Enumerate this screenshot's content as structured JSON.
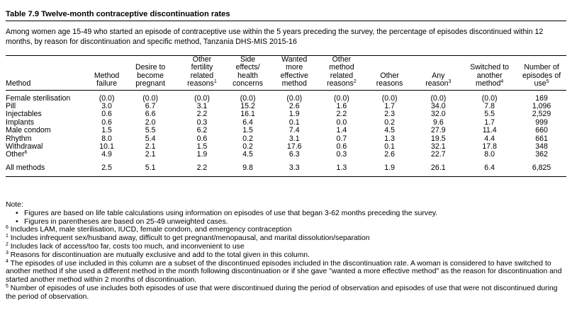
{
  "title": "Table 7.9  Twelve-month contraceptive discontinuation rates",
  "description": "Among women age 15-49 who started an episode of contraceptive use within the 5 years preceding the survey, the percentage of episodes discontinued within 12 months, by reason for discontinuation and specific method, Tanzania DHS-MIS 2015-16",
  "headers": {
    "method": "Method",
    "method_failure": [
      "Method",
      "failure"
    ],
    "desire": [
      "Desire to",
      "become",
      "pregnant"
    ],
    "other_fertility": [
      "Other",
      "fertility",
      "related",
      "reasons"
    ],
    "other_fertility_sup": "1",
    "side_effects": [
      "Side",
      "effects/",
      "health",
      "concerns"
    ],
    "wanted": [
      "Wanted",
      "more",
      "effective",
      "method"
    ],
    "other_method": [
      "Other",
      "method",
      "related",
      "reasons"
    ],
    "other_method_sup": "2",
    "other_reasons": [
      "Other",
      "reasons"
    ],
    "any_reason": [
      "Any",
      "reason"
    ],
    "any_reason_sup": "3",
    "switched": [
      "Switched to",
      "another",
      "method"
    ],
    "switched_sup": "4",
    "episodes": [
      "Number of",
      "episodes of",
      "use"
    ],
    "episodes_sup": "5"
  },
  "rows": [
    {
      "method": "Female sterilisation",
      "sup": "",
      "values": [
        "(0.0)",
        "(0.0)",
        "(0.0)",
        "(0.0)",
        "(0.0)",
        "(0.0)",
        "(0.0)",
        "(0.0)",
        "(0.0)",
        "169"
      ]
    },
    {
      "method": "Pill",
      "sup": "",
      "values": [
        "3.0",
        "6.7",
        "3.1",
        "15.2",
        "2.6",
        "1.6",
        "1.7",
        "34.0",
        "7.8",
        "1,096"
      ]
    },
    {
      "method": "Injectables",
      "sup": "",
      "values": [
        "0.6",
        "6.6",
        "2.2",
        "16.1",
        "1.9",
        "2.2",
        "2.3",
        "32.0",
        "5.5",
        "2,529"
      ]
    },
    {
      "method": "Implants",
      "sup": "",
      "values": [
        "0.6",
        "2.0",
        "0.3",
        "6.4",
        "0.1",
        "0.0",
        "0.2",
        "9.6",
        "1.7",
        "999"
      ]
    },
    {
      "method": "Male condom",
      "sup": "",
      "values": [
        "1.5",
        "5.5",
        "6.2",
        "1.5",
        "7.4",
        "1.4",
        "4.5",
        "27.9",
        "11.4",
        "660"
      ]
    },
    {
      "method": "Rhythm",
      "sup": "",
      "values": [
        "8.0",
        "5.4",
        "0.6",
        "0.2",
        "3.1",
        "0.7",
        "1.3",
        "19.5",
        "4.4",
        "661"
      ]
    },
    {
      "method": "Withdrawal",
      "sup": "",
      "values": [
        "10.1",
        "2.1",
        "1.5",
        "0.2",
        "17.6",
        "0.6",
        "0.1",
        "32.1",
        "17.8",
        "348"
      ]
    },
    {
      "method": "Other",
      "sup": "6",
      "values": [
        "4.9",
        "2.1",
        "1.9",
        "4.5",
        "6.3",
        "0.3",
        "2.6",
        "22.7",
        "8.0",
        "362"
      ]
    }
  ],
  "all_methods": {
    "method": "All methods",
    "values": [
      "2.5",
      "5.1",
      "2.2",
      "9.8",
      "3.3",
      "1.3",
      "1.9",
      "26.1",
      "6.4",
      "6,825"
    ]
  },
  "notes": {
    "heading": "Note:",
    "bullets": [
      "Figures are based on life table calculations using information on episodes of use that began 3-62 months preceding the survey.",
      "Figures in parentheses are based on 25-49 unweighted cases."
    ],
    "footnotes": [
      {
        "mark": "6",
        "text": " Includes LAM, male sterilisation, IUCD, female condom, and emergency contraception"
      },
      {
        "mark": "1",
        "text": " Includes infrequent sex/husband away, difficult to get pregnant/menopausal, and marital dissolution/separation"
      },
      {
        "mark": "2",
        "text": " Includes lack of access/too far, costs too much, and inconvenient to use"
      },
      {
        "mark": "3",
        "text": " Reasons for discontinuation are mutually exclusive and add to the total given in this column."
      },
      {
        "mark": "4",
        "text": " The episodes of use included in this column are a subset of the discontinued episodes included in the discontinuation rate. A woman is considered to have switched to another method if she used a different method in the month following discontinuation or if she gave \"wanted a more effective method\" as the reason for discontinuation and started another method within 2 months of discontinuation."
      },
      {
        "mark": "5",
        "text": " Number of episodes of use includes both episodes of use that were discontinued during the period of observation and episodes of use that were not discontinued during the period of observation."
      }
    ]
  }
}
